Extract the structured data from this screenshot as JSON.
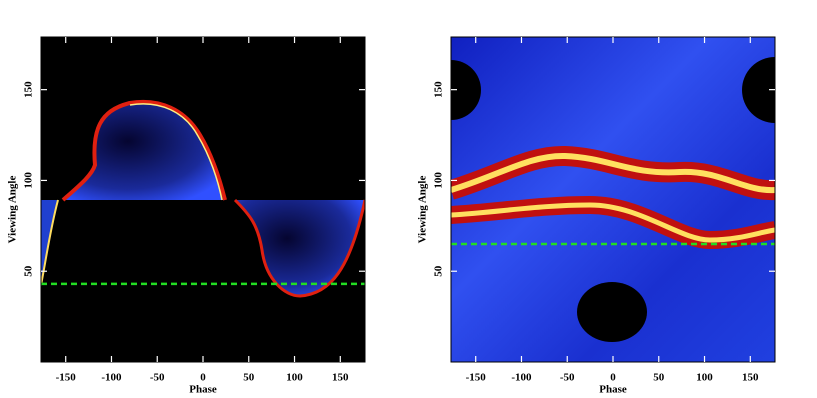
{
  "chart_data": [
    {
      "type": "heatmap",
      "xlabel": "Phase",
      "ylabel": "Viewing Angle",
      "xlim": [
        -177,
        177
      ],
      "ylim": [
        0,
        179
      ],
      "xticks": [
        -150,
        -100,
        -50,
        0,
        50,
        100,
        150
      ],
      "yticks": [
        50,
        100,
        150
      ],
      "reference_line": {
        "value": 43,
        "color": "#22dd22",
        "style": "dashed"
      }
    },
    {
      "type": "heatmap",
      "xlabel": "Phase",
      "ylabel": "Viewing Angle",
      "xlim": [
        -177,
        177
      ],
      "ylim": [
        0,
        179
      ],
      "xticks": [
        -150,
        -100,
        -50,
        0,
        50,
        100,
        150
      ],
      "yticks": [
        50,
        100,
        150
      ],
      "reference_line": {
        "value": 65,
        "color": "#22dd22",
        "style": "dashed"
      }
    }
  ]
}
